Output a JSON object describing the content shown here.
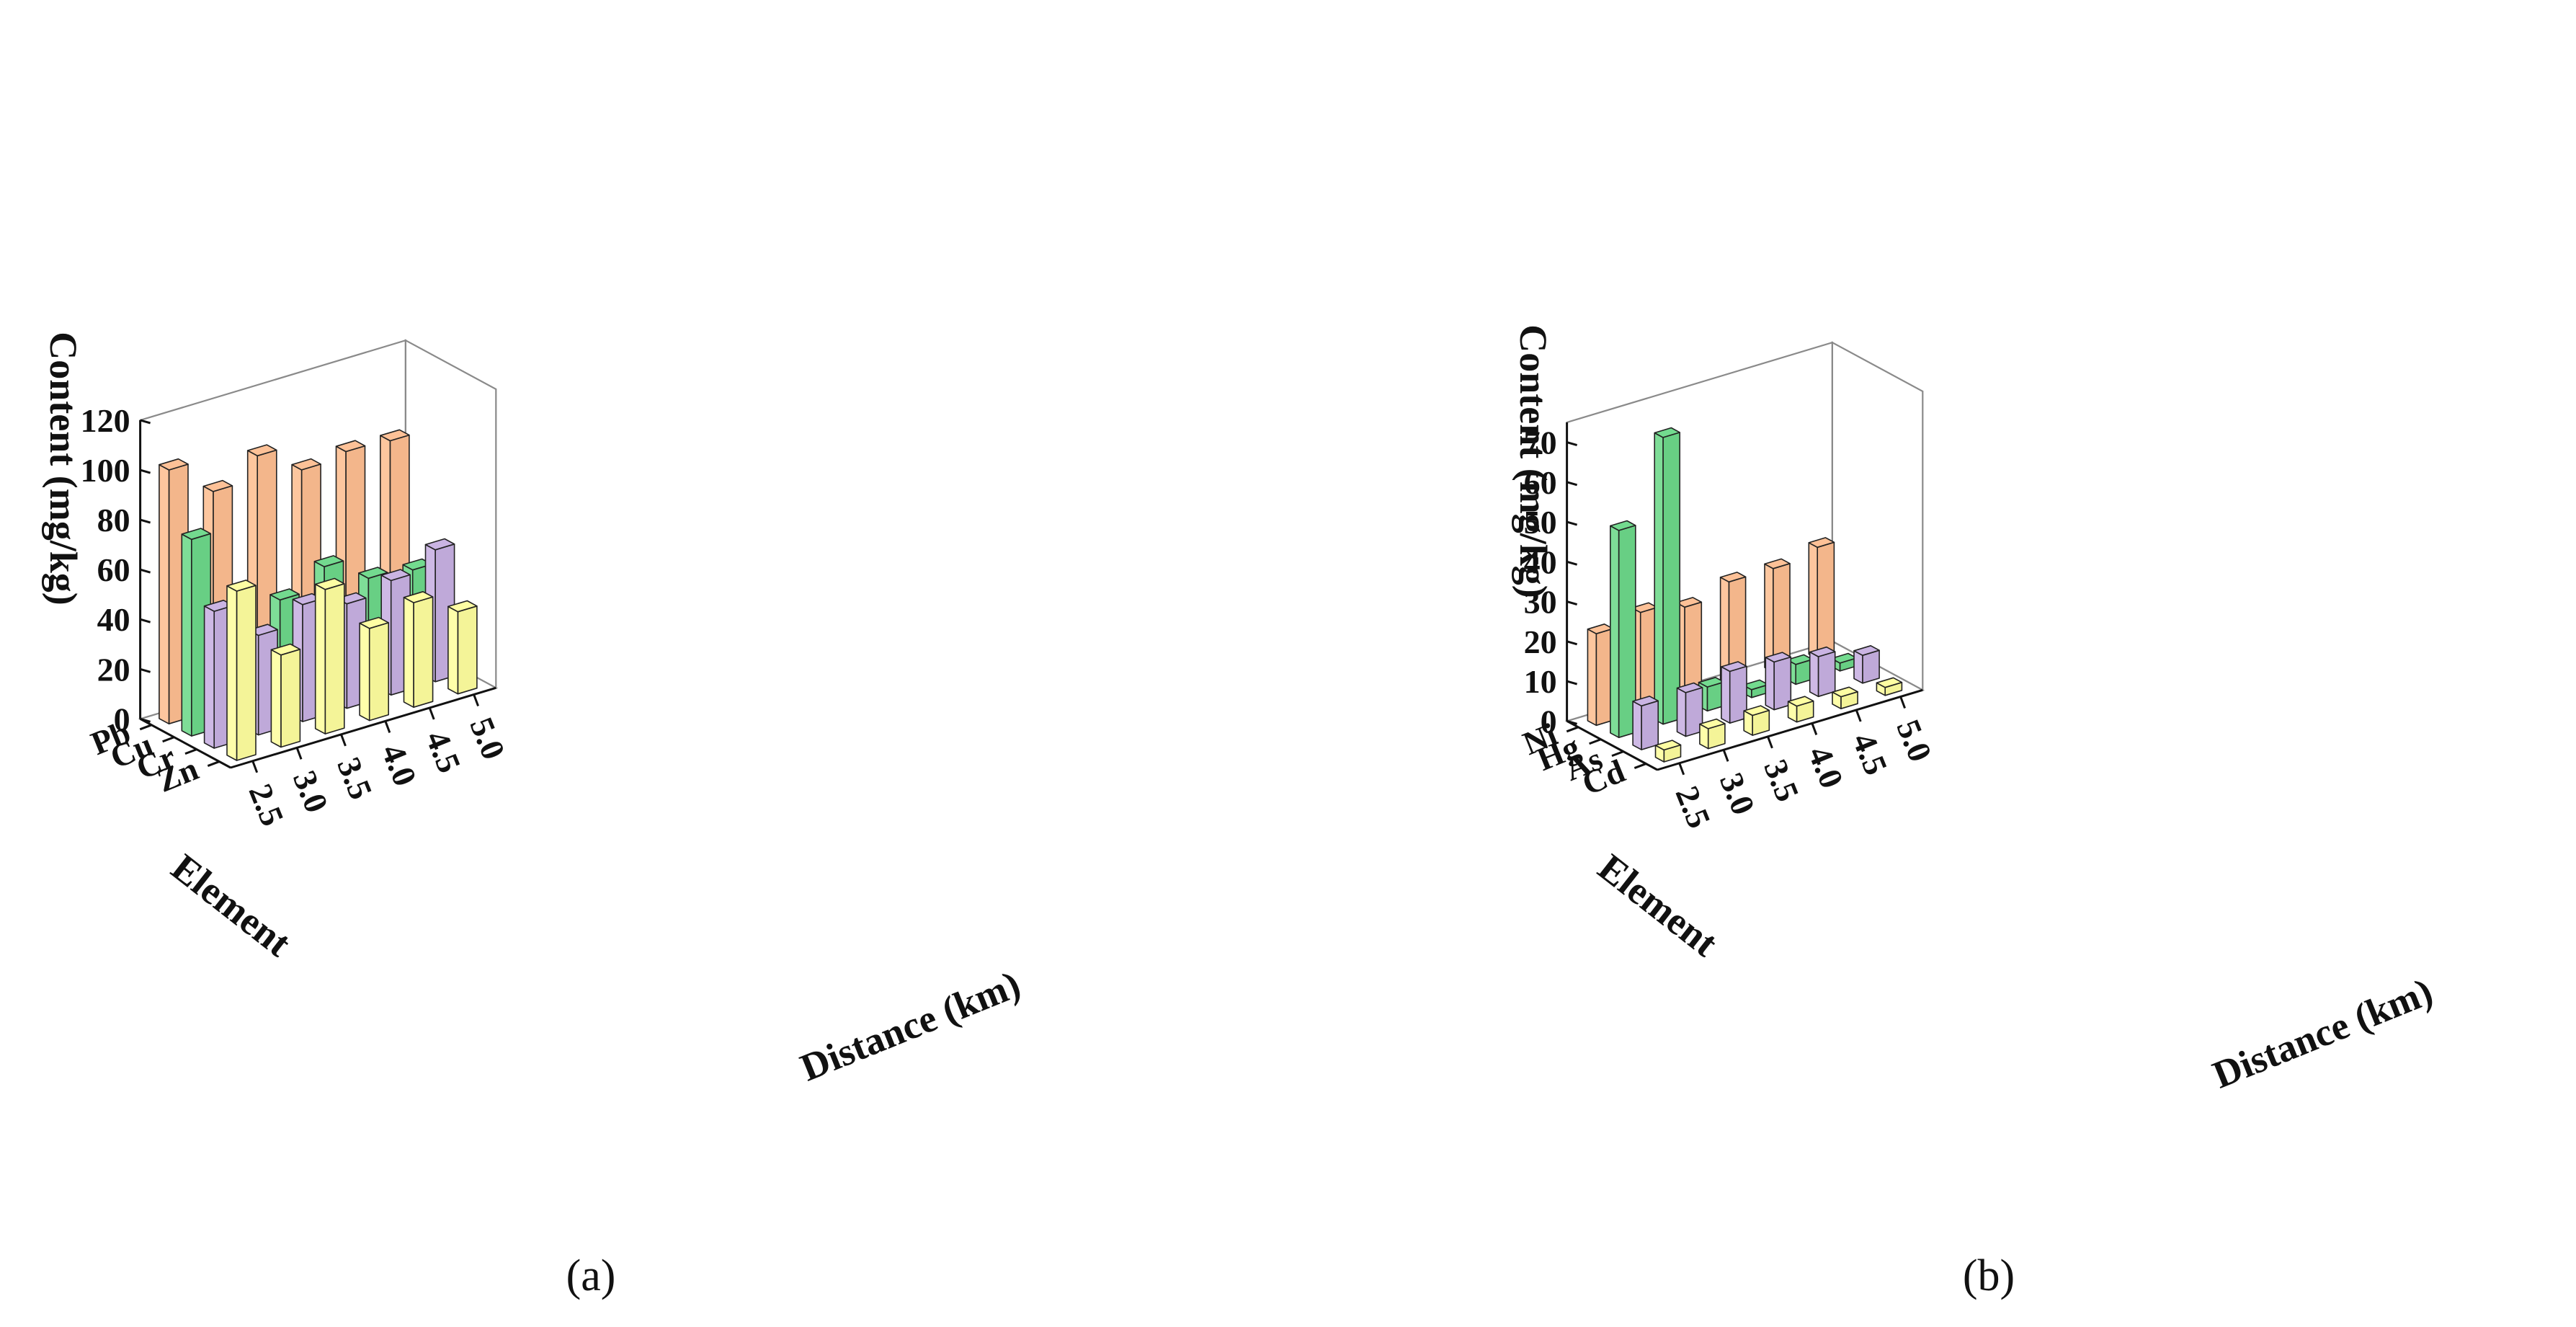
{
  "colors": {
    "orange": "#FDBE91",
    "green": "#6CD889",
    "purple": "#C7B0E2",
    "yellow": "#FEFE9E"
  },
  "chart_data": [
    {
      "type": "bar3d",
      "panel_label": "(a)",
      "zlabel": "Content (mg/kg)",
      "ylabel": "Element",
      "xlabel": "Distance (km)",
      "x_categories": [
        "2.5",
        "3.0",
        "3.5",
        "4.0",
        "4.5",
        "5.0"
      ],
      "y_categories": [
        "Pb",
        "Cu",
        "Cr",
        "Zn"
      ],
      "zlim": [
        0,
        120
      ],
      "z_ticks": [
        "0",
        "20",
        "40",
        "60",
        "80",
        "100",
        "120"
      ],
      "series": [
        {
          "name": "Pb",
          "color": "orange",
          "values": [
            102,
            88,
            97,
            86,
            88,
            87
          ]
        },
        {
          "name": "Cu",
          "color": "green",
          "values": [
            79,
            46,
            44,
            52,
            42,
            40
          ]
        },
        {
          "name": "Cr",
          "color": "purple",
          "values": [
            55,
            40,
            47,
            42,
            46,
            53
          ]
        },
        {
          "name": "Zn",
          "color": "yellow",
          "values": [
            68,
            37,
            58,
            37,
            42,
            33
          ]
        }
      ]
    },
    {
      "type": "bar3d",
      "panel_label": "(b)",
      "zlabel": "Content (mg/kg)",
      "ylabel": "Element",
      "xlabel": "Distance (km)",
      "x_categories": [
        "2.5",
        "3.0",
        "3.5",
        "4.0",
        "4.5",
        "5.0"
      ],
      "y_categories": [
        "Ni",
        "Hg",
        "As",
        "Cd"
      ],
      "zlim": [
        0,
        75
      ],
      "z_ticks": [
        "0",
        "10",
        "20",
        "30",
        "40",
        "50",
        "60",
        "70"
      ],
      "series": [
        {
          "name": "Ni",
          "color": "orange",
          "values": [
            23,
            25,
            23,
            26,
            26,
            28
          ]
        },
        {
          "name": "Hg",
          "color": "green",
          "values": [
            52,
            72,
            6,
            2,
            5,
            2
          ]
        },
        {
          "name": "As",
          "color": "purple",
          "values": [
            11,
            11,
            13,
            12,
            10,
            7
          ]
        },
        {
          "name": "Cd",
          "color": "yellow",
          "values": [
            3,
            5,
            5,
            4,
            3,
            2
          ]
        }
      ]
    }
  ]
}
